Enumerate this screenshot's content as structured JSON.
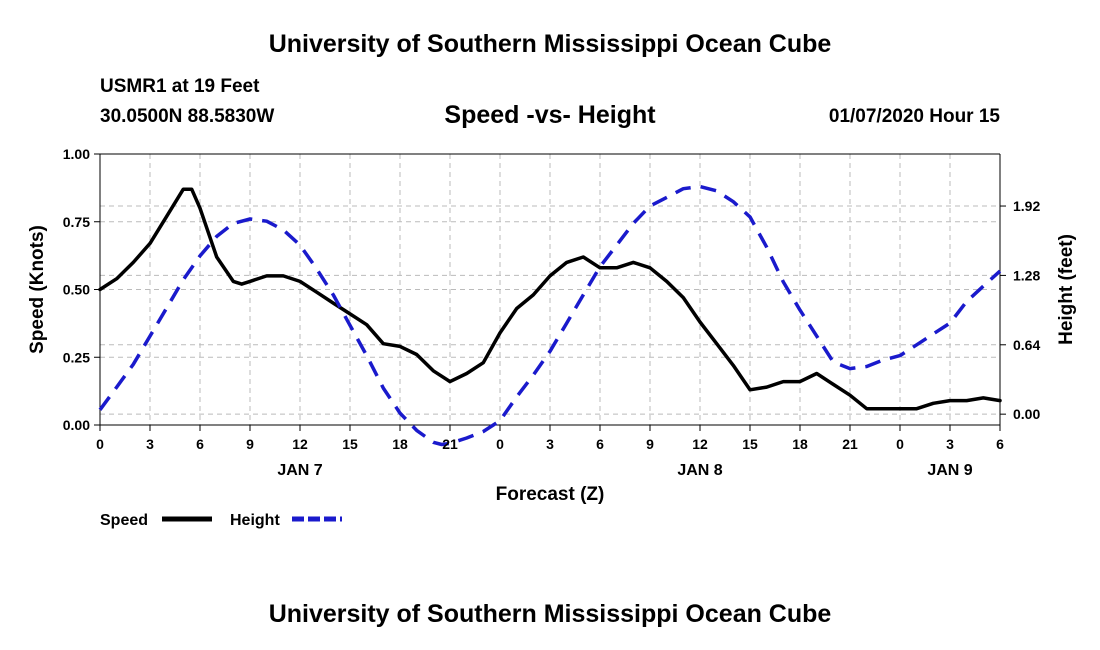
{
  "page": {
    "top_title": "University of Southern Mississippi Ocean Cube",
    "station": "USMR1 at 19 Feet",
    "coords": "30.0500N 88.5830W",
    "date_label": "01/07/2020 Hour 15",
    "bottom_title": "University of Southern Mississippi Ocean Cube"
  },
  "chart_data": {
    "type": "line",
    "title": "Speed -vs- Height",
    "xlabel": "Forecast (Z)",
    "ylabel": "Speed (Knots)",
    "y2label": "Height (feet)",
    "x_unit": "hours from JAN 7 00Z",
    "xlim": [
      0,
      54
    ],
    "ylim": [
      0,
      1.0
    ],
    "y2lim": [
      -0.1,
      2.4
    ],
    "x_ticks": [
      0,
      3,
      6,
      9,
      12,
      15,
      18,
      21,
      24,
      27,
      30,
      33,
      36,
      39,
      42,
      45,
      48,
      51,
      54
    ],
    "x_tick_labels": [
      "0",
      "3",
      "6",
      "9",
      "12",
      "15",
      "18",
      "21",
      "0",
      "3",
      "6",
      "9",
      "12",
      "15",
      "18",
      "21",
      "0",
      "3",
      "6"
    ],
    "day_labels": [
      {
        "x": 12,
        "label": "JAN 7"
      },
      {
        "x": 36,
        "label": "JAN 8"
      },
      {
        "x": 51,
        "label": "JAN 9"
      }
    ],
    "y_ticks": [
      0.0,
      0.25,
      0.5,
      0.75,
      1.0
    ],
    "y_tick_labels": [
      "0.00",
      "0.25",
      "0.50",
      "0.75",
      "1.00"
    ],
    "y2_ticks": [
      0.0,
      0.64,
      1.28,
      1.92
    ],
    "y2_tick_labels": [
      "0.00",
      "0.64",
      "1.28",
      "1.92"
    ],
    "grid": true,
    "legend_position": "bottom-left",
    "series": [
      {
        "name": "Speed",
        "axis": "left",
        "color": "#000000",
        "dash": "solid",
        "x": [
          0,
          1,
          2,
          3,
          4,
          5,
          5.5,
          6,
          7,
          8,
          8.5,
          9,
          10,
          11,
          12,
          13,
          14,
          15,
          16,
          17,
          18,
          19,
          20,
          21,
          22,
          23,
          24,
          25,
          26,
          27,
          28,
          29,
          30,
          31,
          32,
          33,
          34,
          35,
          36,
          37,
          38,
          39,
          40,
          41,
          42,
          43,
          44,
          45,
          46,
          47,
          48,
          49,
          50,
          51,
          52,
          53,
          54
        ],
        "values": [
          0.5,
          0.54,
          0.6,
          0.67,
          0.77,
          0.87,
          0.87,
          0.8,
          0.62,
          0.53,
          0.52,
          0.53,
          0.55,
          0.55,
          0.53,
          0.49,
          0.45,
          0.41,
          0.37,
          0.3,
          0.29,
          0.26,
          0.2,
          0.16,
          0.19,
          0.23,
          0.34,
          0.43,
          0.48,
          0.55,
          0.6,
          0.62,
          0.58,
          0.58,
          0.6,
          0.58,
          0.53,
          0.47,
          0.38,
          0.3,
          0.22,
          0.13,
          0.14,
          0.16,
          0.16,
          0.19,
          0.15,
          0.11,
          0.06,
          0.06,
          0.06,
          0.06,
          0.08,
          0.09,
          0.09,
          0.1,
          0.09
        ]
      },
      {
        "name": "Height",
        "axis": "right",
        "color": "#1a1acc",
        "dash": "dashed",
        "x": [
          0,
          1,
          2,
          3,
          4,
          5,
          6,
          7,
          8,
          9,
          10,
          11,
          12,
          13,
          14,
          15,
          16,
          17,
          18,
          19,
          20,
          20.5,
          21,
          22,
          23,
          24,
          25,
          26,
          27,
          28,
          29,
          30,
          31,
          32,
          33,
          34,
          35,
          36,
          37,
          38,
          39,
          40,
          41,
          42,
          43,
          44,
          45,
          46,
          47,
          48,
          49,
          50,
          51,
          52,
          53,
          54
        ],
        "values": [
          0.04,
          0.25,
          0.46,
          0.72,
          0.98,
          1.24,
          1.46,
          1.64,
          1.76,
          1.8,
          1.78,
          1.7,
          1.56,
          1.34,
          1.1,
          0.82,
          0.54,
          0.24,
          0.01,
          -0.15,
          -0.26,
          -0.28,
          -0.27,
          -0.22,
          -0.16,
          -0.06,
          0.16,
          0.36,
          0.58,
          0.84,
          1.1,
          1.36,
          1.56,
          1.76,
          1.92,
          2.0,
          2.08,
          2.1,
          2.06,
          1.96,
          1.82,
          1.54,
          1.22,
          0.96,
          0.72,
          0.48,
          0.42,
          0.44,
          0.5,
          0.54,
          0.64,
          0.74,
          0.84,
          1.04,
          1.18,
          1.32
        ]
      }
    ]
  }
}
